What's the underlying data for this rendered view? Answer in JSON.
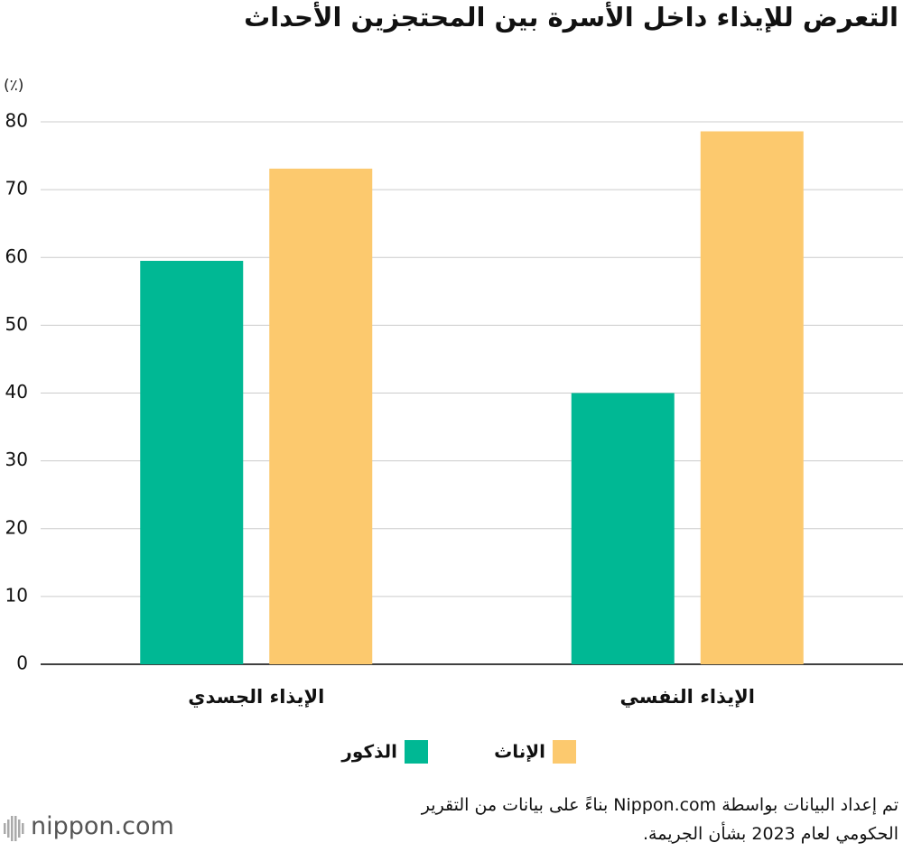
{
  "chart_data": {
    "type": "bar",
    "title": "التعرض للإيذاء داخل الأسرة بين المحتجزين الأحداث",
    "y_unit": "(٪)",
    "categories": [
      "الإيذاء الجسدي",
      "الإيذاء النفسي"
    ],
    "series": [
      {
        "name": "الذكور",
        "color": "#00b894",
        "values": [
          59.5,
          40
        ]
      },
      {
        "name": "الإناث",
        "color": "#fcc96e",
        "values": [
          73.1,
          78.6
        ]
      }
    ],
    "ylim": [
      0,
      80
    ],
    "yticks": [
      0,
      10,
      20,
      30,
      40,
      50,
      60,
      70,
      80
    ],
    "grid": true,
    "note": [
      "تم إعداد البيانات بواسطة Nippon.com بناءً على بيانات من التقرير",
      "الحكومي لعام 2023 بشأن الجريمة."
    ],
    "logo": "nippon.com"
  }
}
